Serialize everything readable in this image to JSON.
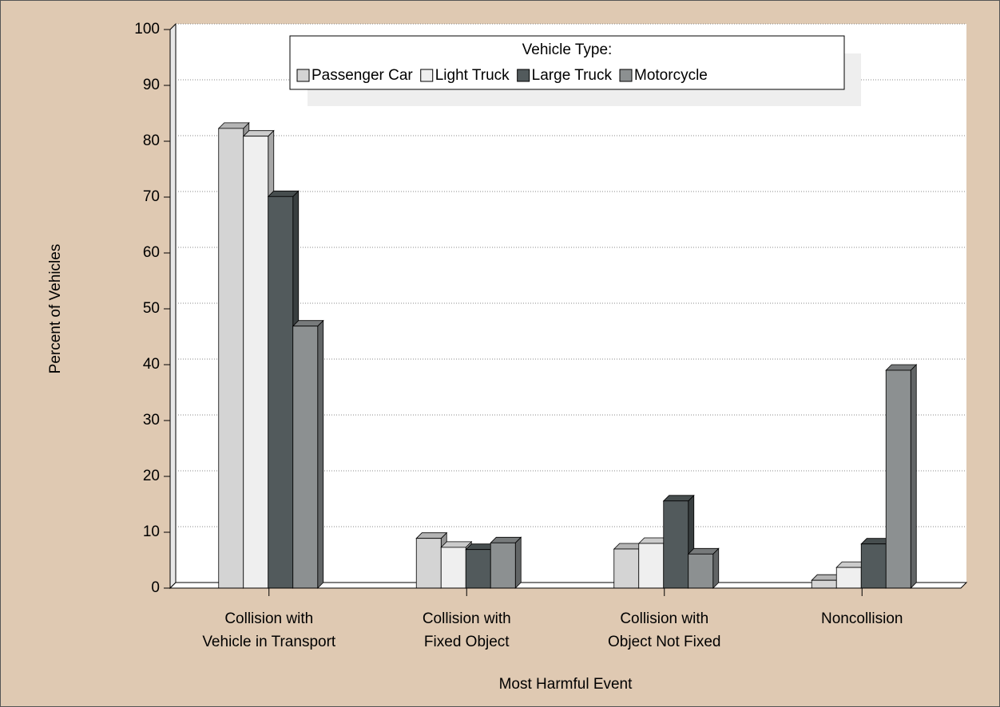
{
  "chart_data": {
    "type": "bar3d",
    "y_label": "Percent of Vehicles",
    "x_label": "Most Harmful Event",
    "legend_title": "Vehicle Type:",
    "categories": [
      [
        "Collision with",
        "Vehicle in Transport"
      ],
      [
        "Collision with",
        "Fixed Object"
      ],
      [
        "Collision with",
        "Object Not Fixed"
      ],
      [
        "Noncollision"
      ]
    ],
    "series": [
      {
        "name": "Passenger Car",
        "color": "#d4d4d4",
        "values": [
          82.3,
          8.9,
          7.0,
          1.4
        ]
      },
      {
        "name": "Light Truck",
        "color": "#efefef",
        "values": [
          80.9,
          7.3,
          8.0,
          3.7
        ]
      },
      {
        "name": "Large Truck",
        "color": "#525a5c",
        "values": [
          70.1,
          6.9,
          15.6,
          7.9
        ]
      },
      {
        "name": "Motorcycle",
        "color": "#8c9091",
        "values": [
          46.9,
          8.1,
          6.1,
          39.0
        ]
      }
    ],
    "ylim": [
      0,
      100
    ],
    "yticks": [
      0,
      10,
      20,
      30,
      40,
      50,
      60,
      70,
      80,
      90,
      100
    ],
    "grid": true,
    "legend": "top"
  }
}
